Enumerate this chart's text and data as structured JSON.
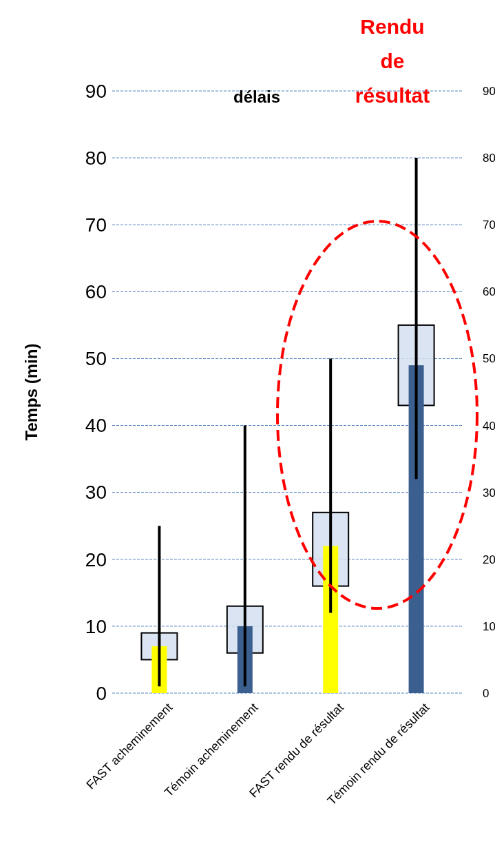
{
  "chart_data": {
    "type": "box",
    "ylabel": "Temps (min)",
    "categories": [
      "FAST acheminement",
      "Témoin acheminement",
      "FAST rendu de résultat",
      "Témoin rendu de résultat"
    ],
    "series": [
      {
        "type": "bar",
        "colors": [
          "#ffff00",
          "#3b6090",
          "#ffff00",
          "#3b6090"
        ],
        "values": [
          7,
          10,
          22,
          49
        ]
      },
      {
        "type": "box",
        "color": "#d3dff0",
        "boxes": [
          {
            "low": 1,
            "q1": 5,
            "q3": 9,
            "high": 25
          },
          {
            "low": 1,
            "q1": 6,
            "q3": 13,
            "high": 40
          },
          {
            "low": 12,
            "q1": 16,
            "q3": 27,
            "high": 50
          },
          {
            "low": 32,
            "q1": 43,
            "q3": 55,
            "high": 80
          }
        ]
      }
    ],
    "ylim": [
      0,
      90
    ],
    "yticks": [
      0,
      10,
      20,
      30,
      40,
      50,
      60,
      70,
      80,
      90
    ],
    "y2lim": [
      0,
      90
    ],
    "y2ticks": [
      0,
      10,
      20,
      30,
      40,
      50,
      60,
      70,
      80,
      90
    ],
    "grid": "y",
    "annotations": [
      "délais",
      "Rendu de résultat"
    ]
  }
}
